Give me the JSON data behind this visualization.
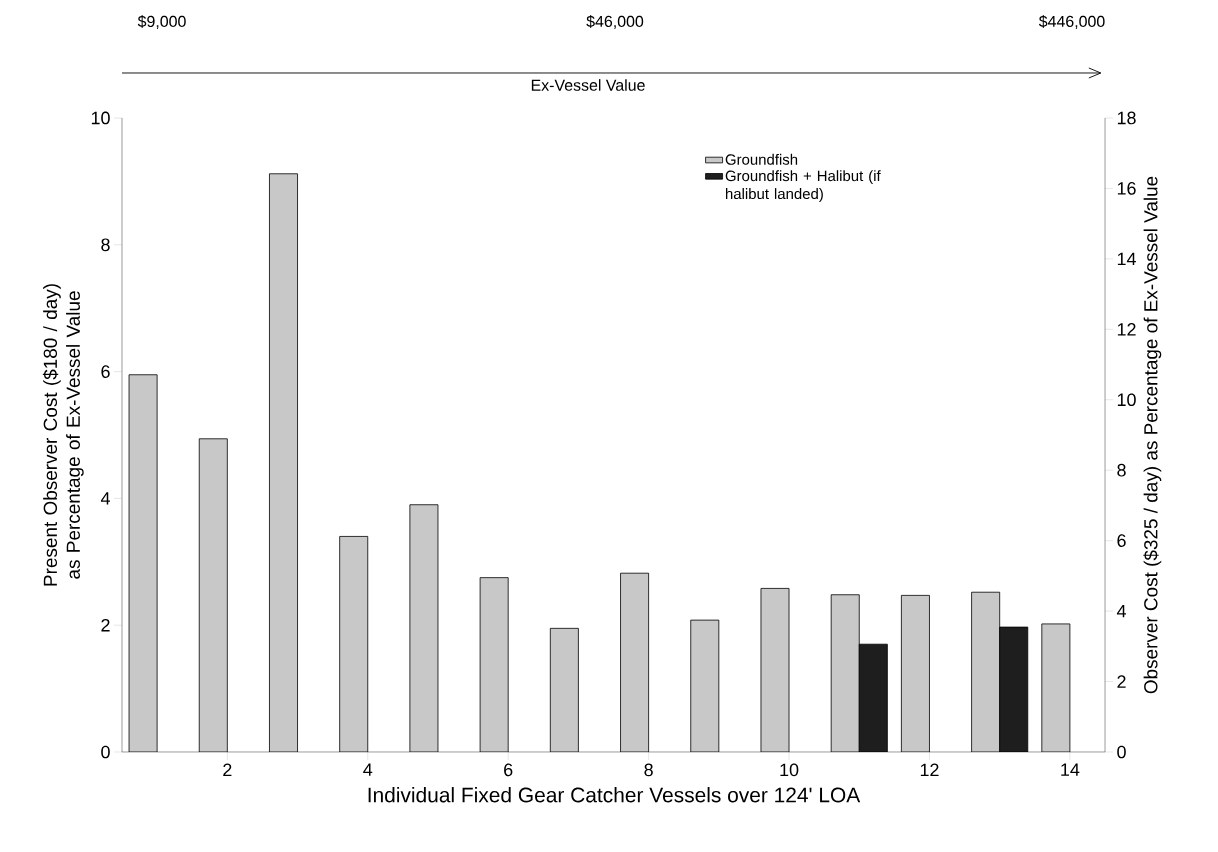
{
  "chart_data": {
    "type": "bar",
    "xlabel": "Individual Fixed Gear Catcher Vessels over 124' LOA",
    "ylabel": "Present Observer Cost ($180 / day) as Percentage of Ex-Vessel Value",
    "y2label": "Observer Cost ($325 / day) as Percentage of Ex-Vessel Value",
    "annotations": [
      "$9,000",
      "$46,000",
      "$446,000",
      "Ex-Vessel Value"
    ],
    "x": [
      1,
      2,
      3,
      4,
      5,
      6,
      7,
      8,
      9,
      10,
      11,
      12,
      13,
      14
    ],
    "series": [
      {
        "name": "Groundfish",
        "color": "#c8c8c8",
        "values": [
          5.95,
          4.94,
          9.12,
          3.4,
          3.9,
          2.75,
          1.95,
          2.82,
          2.08,
          2.58,
          2.48,
          2.47,
          2.52,
          2.02
        ]
      },
      {
        "name": "Groundfish + Halibut (if halibut landed)",
        "color": "#1e1e1e",
        "values": [
          null,
          null,
          null,
          null,
          null,
          null,
          null,
          null,
          null,
          null,
          1.7,
          null,
          1.97,
          null
        ]
      }
    ],
    "xlim": [
      0.5,
      14.5
    ],
    "xticks": [
      2,
      4,
      6,
      8,
      10,
      12,
      14
    ],
    "ylim": [
      0,
      10
    ],
    "yticks": [
      0,
      2,
      4,
      6,
      8,
      10
    ],
    "y2lim": [
      0,
      18
    ],
    "y2ticks": [
      0,
      2,
      4,
      6,
      8,
      10,
      12,
      14,
      16,
      18
    ],
    "legend": "top right",
    "grid": false
  }
}
